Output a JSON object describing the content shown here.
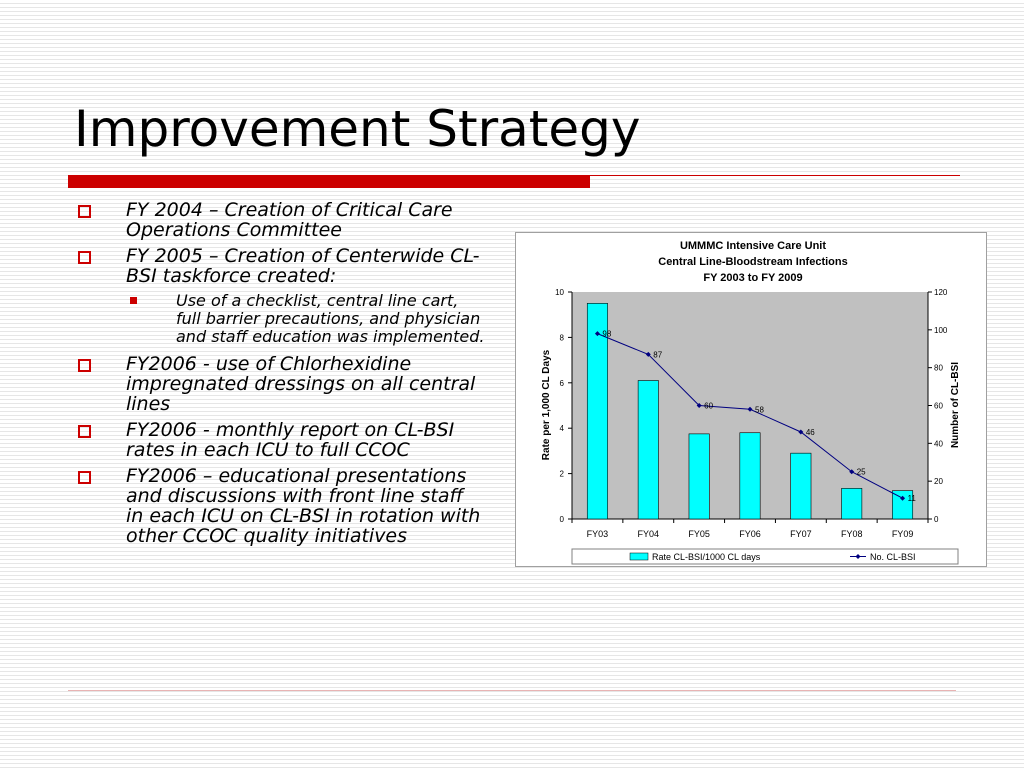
{
  "slide": {
    "title": "Improvement Strategy",
    "bullets": [
      {
        "text": "FY 2004 – Creation of Critical Care Operations Committee",
        "subs": []
      },
      {
        "text": "FY 2005 – Creation of Centerwide CL-BSI taskforce created:",
        "subs": [
          "Use of a checklist, central line cart, full barrier precautions, and physician and staff education was implemented."
        ]
      },
      {
        "text": "FY2006 - use of Chlorhexidine impregnated dressings on all central lines",
        "subs": []
      },
      {
        "text": "FY2006 - monthly report on CL-BSI rates in each ICU to full CCOC",
        "subs": []
      },
      {
        "text": "FY2006 – educational presentations and discussions with front line staff in each ICU on CL-BSI in rotation with other CCOC quality initiatives",
        "subs": []
      }
    ]
  },
  "colors": {
    "accent": "#cc0000",
    "bar_fill": "#00ffff",
    "line": "#000080",
    "plot_bg": "#c0c0c0"
  },
  "chart_data": {
    "type": "bar",
    "title": [
      "UMMMC Intensive Care Unit",
      "Central Line-Bloodstream Infections",
      "FY 2003 to FY 2009"
    ],
    "categories": [
      "FY03",
      "FY04",
      "FY05",
      "FY06",
      "FY07",
      "FY08",
      "FY09"
    ],
    "series": [
      {
        "name": "Rate CL-BSI/1000 CL days",
        "type": "bar",
        "axis": "left",
        "values": [
          9.5,
          6.1,
          3.75,
          3.8,
          2.9,
          1.35,
          1.25
        ]
      },
      {
        "name": "No. CL-BSI",
        "type": "line",
        "axis": "right",
        "values": [
          98,
          87,
          60,
          58,
          46,
          25,
          11
        ]
      }
    ],
    "ylabel": "Rate per 1,000 CL Days",
    "y2label": "Number of CL-BSI",
    "ylim": [
      0,
      10
    ],
    "y2lim": [
      0,
      120
    ],
    "yticks": [
      "0",
      "2",
      "4",
      "6",
      "8",
      "10"
    ],
    "y2ticks": [
      "0",
      "20",
      "40",
      "60",
      "80",
      "100",
      "120"
    ],
    "grid": false,
    "legend": "bottom"
  }
}
